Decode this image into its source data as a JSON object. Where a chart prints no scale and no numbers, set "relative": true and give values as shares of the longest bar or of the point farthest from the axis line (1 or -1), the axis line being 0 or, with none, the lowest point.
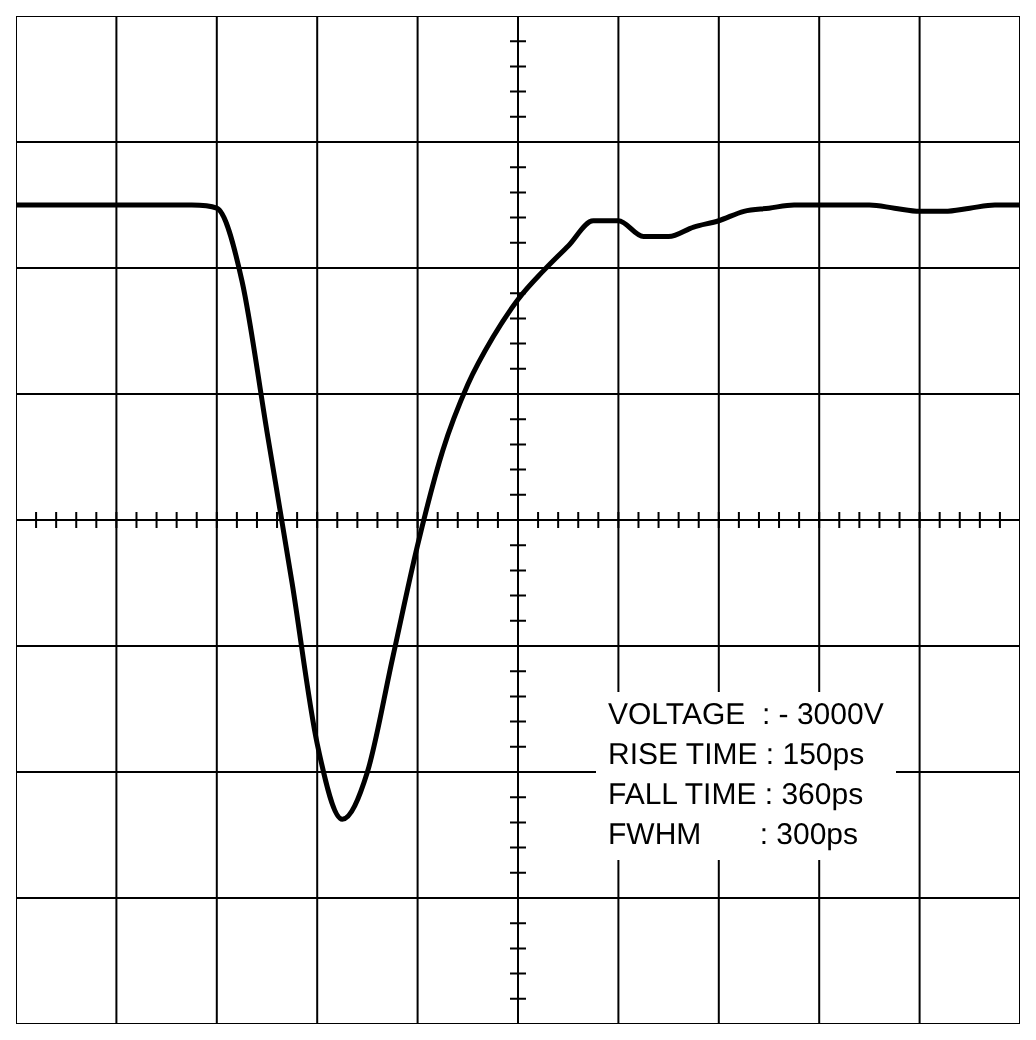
{
  "chart_data": {
    "type": "line",
    "relative": true,
    "grid": true,
    "marker": "none",
    "line_style": "solid",
    "categories": [
      null,
      null,
      null,
      null,
      null,
      null,
      null,
      null,
      null,
      null,
      null,
      null,
      null,
      null,
      null,
      null,
      null,
      null,
      null,
      null,
      null,
      null,
      null,
      null,
      null,
      null,
      null,
      null,
      null,
      null,
      null,
      null,
      null,
      null,
      null,
      null,
      null,
      null,
      null,
      null,
      null
    ],
    "series": [
      {
        "color": "#000000",
        "values": [
          1,
          1,
          1,
          1,
          1,
          1,
          1,
          1,
          0.99,
          0.76,
          0.28,
          -0.2,
          -0.71,
          -0.95,
          -0.8,
          -0.44,
          -0.08,
          0.22,
          0.43,
          0.58,
          0.7,
          0.79,
          0.87,
          0.95,
          0.95,
          0.9,
          0.9,
          0.93,
          0.95,
          0.98,
          0.99,
          1,
          1,
          1,
          1,
          0.99,
          0.98,
          0.98,
          0.99,
          1,
          1
        ]
      }
    ],
    "annotations": [
      "VOLTAGE  : - 3000V",
      "RISE TIME : 150ps",
      "FALL TIME : 360ps",
      "FWHM       : 300ps"
    ]
  }
}
